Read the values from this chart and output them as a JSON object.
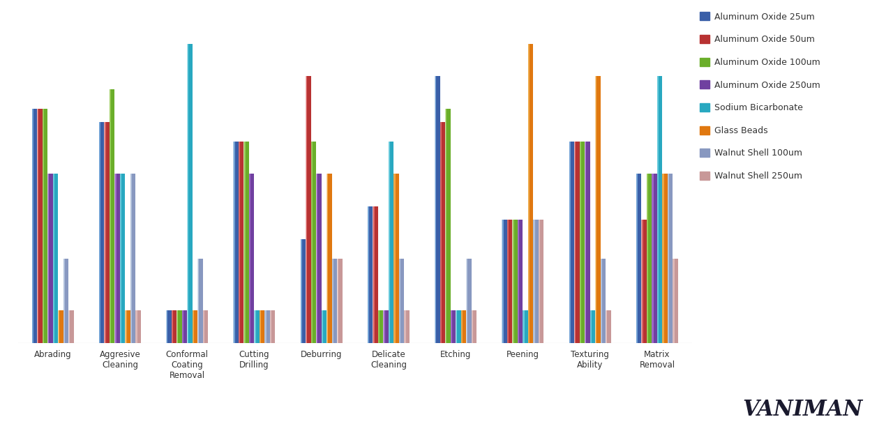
{
  "categories": [
    "Abrading",
    "Aggresive\nCleaning",
    "Conformal\nCoating\nRemoval",
    "Cutting\nDrilling",
    "Deburring",
    "Delicate\nCleaning",
    "Etching",
    "Peening",
    "Texturing\nAbility",
    "Matrix\nRemoval"
  ],
  "series": [
    {
      "name": "Aluminum Oxide 25um",
      "color": "#3A5FA8",
      "highlight": "#7AACDC",
      "values": [
        72,
        68,
        10,
        62,
        32,
        42,
        82,
        38,
        62,
        52
      ]
    },
    {
      "name": "Aluminum Oxide 50um",
      "color": "#B83232",
      "highlight": "#E07070",
      "values": [
        72,
        68,
        10,
        62,
        82,
        42,
        68,
        38,
        62,
        38
      ]
    },
    {
      "name": "Aluminum Oxide 100um",
      "color": "#6AAE2A",
      "highlight": "#A0D060",
      "values": [
        72,
        78,
        10,
        62,
        62,
        10,
        72,
        38,
        62,
        52
      ]
    },
    {
      "name": "Aluminum Oxide 250um",
      "color": "#7040A0",
      "highlight": "#A870D0",
      "values": [
        52,
        52,
        10,
        52,
        52,
        10,
        10,
        38,
        62,
        52
      ]
    },
    {
      "name": "Sodium Bicarbonate",
      "color": "#28A8C0",
      "highlight": "#70D0E0",
      "values": [
        52,
        52,
        92,
        10,
        10,
        62,
        10,
        10,
        10,
        82
      ]
    },
    {
      "name": "Glass Beads",
      "color": "#E07810",
      "highlight": "#F0B050",
      "values": [
        10,
        10,
        10,
        10,
        52,
        52,
        10,
        92,
        82,
        52
      ]
    },
    {
      "name": "Walnut Shell 100um",
      "color": "#8898C0",
      "highlight": "#B8C8E0",
      "values": [
        26,
        52,
        26,
        10,
        26,
        26,
        26,
        38,
        26,
        52
      ]
    },
    {
      "name": "Walnut Shell 250um",
      "color": "#C89898",
      "highlight": "#E0C0C0",
      "values": [
        10,
        10,
        10,
        10,
        26,
        10,
        10,
        38,
        10,
        26
      ]
    }
  ],
  "ylim": [
    0,
    100
  ],
  "background_color": "#ffffff",
  "grid_color": "#d0d0d0",
  "bar_width": 0.078,
  "figsize": [
    12.8,
    6.31
  ],
  "dpi": 100
}
